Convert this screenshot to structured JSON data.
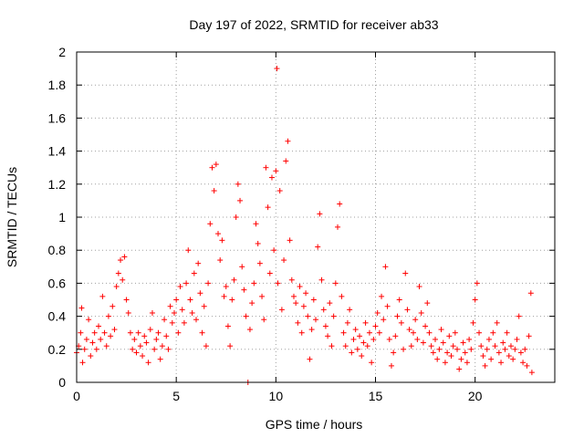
{
  "chart_data": {
    "type": "scatter",
    "title": "Day 197 of 2022, SRMTID for receiver ab33",
    "xlabel": "GPS time / hours",
    "ylabel": "SRMTID / TECUs",
    "xlim": [
      0,
      24
    ],
    "ylim": [
      0,
      2
    ],
    "xticks": [
      0,
      5,
      10,
      15,
      20
    ],
    "yticks": [
      0,
      0.2,
      0.4,
      0.6,
      0.8,
      1,
      1.2,
      1.4,
      1.6,
      1.8,
      2
    ],
    "xtick_labels": [
      "0",
      "5",
      "10",
      "15",
      "20"
    ],
    "ytick_labels": [
      "0",
      "0.2",
      "0.4",
      "0.6",
      "0.8",
      "1",
      "1.2",
      "1.4",
      "1.6",
      "1.8",
      "2"
    ],
    "grid": true,
    "marker": "+",
    "series_color": "#ff0000",
    "series": [
      {
        "name": "SRMTID",
        "points": [
          [
            0.0,
            0.18
          ],
          [
            0.1,
            0.22
          ],
          [
            0.2,
            0.3
          ],
          [
            0.25,
            0.45
          ],
          [
            0.3,
            0.12
          ],
          [
            0.4,
            0.2
          ],
          [
            0.5,
            0.26
          ],
          [
            0.6,
            0.38
          ],
          [
            0.7,
            0.16
          ],
          [
            0.8,
            0.24
          ],
          [
            0.9,
            0.3
          ],
          [
            1.0,
            0.2
          ],
          [
            1.1,
            0.34
          ],
          [
            1.2,
            0.26
          ],
          [
            1.3,
            0.52
          ],
          [
            1.4,
            0.3
          ],
          [
            1.5,
            0.22
          ],
          [
            1.6,
            0.4
          ],
          [
            1.7,
            0.28
          ],
          [
            1.8,
            0.46
          ],
          [
            1.9,
            0.32
          ],
          [
            2.0,
            0.58
          ],
          [
            2.1,
            0.66
          ],
          [
            2.2,
            0.74
          ],
          [
            2.3,
            0.62
          ],
          [
            2.4,
            0.76
          ],
          [
            2.5,
            0.5
          ],
          [
            2.6,
            0.42
          ],
          [
            2.7,
            0.3
          ],
          [
            2.8,
            0.2
          ],
          [
            2.9,
            0.26
          ],
          [
            3.0,
            0.18
          ],
          [
            3.1,
            0.3
          ],
          [
            3.2,
            0.22
          ],
          [
            3.3,
            0.16
          ],
          [
            3.4,
            0.28
          ],
          [
            3.5,
            0.24
          ],
          [
            3.6,
            0.12
          ],
          [
            3.7,
            0.32
          ],
          [
            3.8,
            0.42
          ],
          [
            3.9,
            0.2
          ],
          [
            4.0,
            0.26
          ],
          [
            4.1,
            0.3
          ],
          [
            4.2,
            0.14
          ],
          [
            4.3,
            0.22
          ],
          [
            4.4,
            0.38
          ],
          [
            4.5,
            0.28
          ],
          [
            4.6,
            0.2
          ],
          [
            4.7,
            0.46
          ],
          [
            4.8,
            0.36
          ],
          [
            4.9,
            0.42
          ],
          [
            5.0,
            0.5
          ],
          [
            5.1,
            0.3
          ],
          [
            5.2,
            0.58
          ],
          [
            5.3,
            0.44
          ],
          [
            5.4,
            0.36
          ],
          [
            5.5,
            0.6
          ],
          [
            5.6,
            0.8
          ],
          [
            5.7,
            0.5
          ],
          [
            5.8,
            0.42
          ],
          [
            5.9,
            0.66
          ],
          [
            6.0,
            0.38
          ],
          [
            6.1,
            0.72
          ],
          [
            6.2,
            0.54
          ],
          [
            6.3,
            0.3
          ],
          [
            6.4,
            0.46
          ],
          [
            6.5,
            0.22
          ],
          [
            6.6,
            0.6
          ],
          [
            6.7,
            0.96
          ],
          [
            6.8,
            1.3
          ],
          [
            6.9,
            1.16
          ],
          [
            7.0,
            1.32
          ],
          [
            7.1,
            0.9
          ],
          [
            7.2,
            0.74
          ],
          [
            7.3,
            0.86
          ],
          [
            7.4,
            0.52
          ],
          [
            7.5,
            0.58
          ],
          [
            7.6,
            0.34
          ],
          [
            7.7,
            0.22
          ],
          [
            7.8,
            0.5
          ],
          [
            7.9,
            0.62
          ],
          [
            8.0,
            1.0
          ],
          [
            8.1,
            1.2
          ],
          [
            8.2,
            1.1
          ],
          [
            8.3,
            0.7
          ],
          [
            8.4,
            0.56
          ],
          [
            8.5,
            0.4
          ],
          [
            8.6,
            0.0
          ],
          [
            8.7,
            0.32
          ],
          [
            8.8,
            0.48
          ],
          [
            8.9,
            0.6
          ],
          [
            9.0,
            0.96
          ],
          [
            9.1,
            0.84
          ],
          [
            9.2,
            0.72
          ],
          [
            9.3,
            0.52
          ],
          [
            9.4,
            0.38
          ],
          [
            9.5,
            1.3
          ],
          [
            9.6,
            1.06
          ],
          [
            9.7,
            0.66
          ],
          [
            9.8,
            1.24
          ],
          [
            9.9,
            0.8
          ],
          [
            10.0,
            1.28
          ],
          [
            10.05,
            1.9
          ],
          [
            10.1,
            0.6
          ],
          [
            10.2,
            1.16
          ],
          [
            10.3,
            0.44
          ],
          [
            10.4,
            0.74
          ],
          [
            10.5,
            1.34
          ],
          [
            10.6,
            1.46
          ],
          [
            10.7,
            0.86
          ],
          [
            10.8,
            0.62
          ],
          [
            10.9,
            0.52
          ],
          [
            11.0,
            0.48
          ],
          [
            11.1,
            0.36
          ],
          [
            11.2,
            0.58
          ],
          [
            11.3,
            0.3
          ],
          [
            11.4,
            0.46
          ],
          [
            11.5,
            0.54
          ],
          [
            11.6,
            0.4
          ],
          [
            11.7,
            0.14
          ],
          [
            11.8,
            0.32
          ],
          [
            11.9,
            0.5
          ],
          [
            12.0,
            0.38
          ],
          [
            12.1,
            0.82
          ],
          [
            12.2,
            1.02
          ],
          [
            12.3,
            0.62
          ],
          [
            12.4,
            0.44
          ],
          [
            12.5,
            0.34
          ],
          [
            12.6,
            0.28
          ],
          [
            12.7,
            0.48
          ],
          [
            12.8,
            0.22
          ],
          [
            12.9,
            0.4
          ],
          [
            13.0,
            0.6
          ],
          [
            13.1,
            0.94
          ],
          [
            13.2,
            1.08
          ],
          [
            13.3,
            0.52
          ],
          [
            13.4,
            0.3
          ],
          [
            13.5,
            0.22
          ],
          [
            13.6,
            0.36
          ],
          [
            13.7,
            0.44
          ],
          [
            13.8,
            0.18
          ],
          [
            13.9,
            0.26
          ],
          [
            14.0,
            0.32
          ],
          [
            14.1,
            0.2
          ],
          [
            14.2,
            0.28
          ],
          [
            14.3,
            0.16
          ],
          [
            14.4,
            0.24
          ],
          [
            14.5,
            0.36
          ],
          [
            14.6,
            0.22
          ],
          [
            14.7,
            0.3
          ],
          [
            14.8,
            0.12
          ],
          [
            14.9,
            0.26
          ],
          [
            15.0,
            0.34
          ],
          [
            15.1,
            0.42
          ],
          [
            15.2,
            0.3
          ],
          [
            15.3,
            0.52
          ],
          [
            15.4,
            0.38
          ],
          [
            15.5,
            0.7
          ],
          [
            15.6,
            0.46
          ],
          [
            15.7,
            0.26
          ],
          [
            15.8,
            0.1
          ],
          [
            15.9,
            0.18
          ],
          [
            16.0,
            0.28
          ],
          [
            16.1,
            0.4
          ],
          [
            16.2,
            0.5
          ],
          [
            16.3,
            0.36
          ],
          [
            16.4,
            0.2
          ],
          [
            16.5,
            0.66
          ],
          [
            16.6,
            0.44
          ],
          [
            16.7,
            0.32
          ],
          [
            16.8,
            0.22
          ],
          [
            16.9,
            0.3
          ],
          [
            17.0,
            0.38
          ],
          [
            17.1,
            0.26
          ],
          [
            17.2,
            0.58
          ],
          [
            17.3,
            0.42
          ],
          [
            17.4,
            0.24
          ],
          [
            17.5,
            0.34
          ],
          [
            17.6,
            0.48
          ],
          [
            17.7,
            0.3
          ],
          [
            17.8,
            0.22
          ],
          [
            17.9,
            0.18
          ],
          [
            18.0,
            0.26
          ],
          [
            18.1,
            0.14
          ],
          [
            18.2,
            0.2
          ],
          [
            18.3,
            0.32
          ],
          [
            18.4,
            0.24
          ],
          [
            18.5,
            0.12
          ],
          [
            18.6,
            0.18
          ],
          [
            18.7,
            0.28
          ],
          [
            18.8,
            0.16
          ],
          [
            18.9,
            0.22
          ],
          [
            19.0,
            0.3
          ],
          [
            19.1,
            0.2
          ],
          [
            19.2,
            0.08
          ],
          [
            19.3,
            0.14
          ],
          [
            19.4,
            0.24
          ],
          [
            19.5,
            0.18
          ],
          [
            19.6,
            0.12
          ],
          [
            19.7,
            0.26
          ],
          [
            19.8,
            0.2
          ],
          [
            19.9,
            0.36
          ],
          [
            20.0,
            0.5
          ],
          [
            20.1,
            0.6
          ],
          [
            20.2,
            0.3
          ],
          [
            20.3,
            0.22
          ],
          [
            20.4,
            0.16
          ],
          [
            20.5,
            0.1
          ],
          [
            20.6,
            0.2
          ],
          [
            20.7,
            0.26
          ],
          [
            20.8,
            0.14
          ],
          [
            20.9,
            0.3
          ],
          [
            21.0,
            0.22
          ],
          [
            21.1,
            0.36
          ],
          [
            21.2,
            0.18
          ],
          [
            21.3,
            0.12
          ],
          [
            21.4,
            0.24
          ],
          [
            21.5,
            0.2
          ],
          [
            21.6,
            0.3
          ],
          [
            21.7,
            0.16
          ],
          [
            21.8,
            0.22
          ],
          [
            21.9,
            0.14
          ],
          [
            22.0,
            0.2
          ],
          [
            22.1,
            0.26
          ],
          [
            22.2,
            0.4
          ],
          [
            22.3,
            0.18
          ],
          [
            22.4,
            0.12
          ],
          [
            22.5,
            0.2
          ],
          [
            22.6,
            0.1
          ],
          [
            22.7,
            0.28
          ],
          [
            22.8,
            0.54
          ],
          [
            22.85,
            0.06
          ]
        ]
      }
    ]
  }
}
